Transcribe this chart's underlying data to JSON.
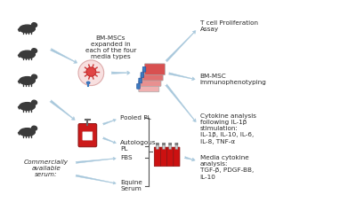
{
  "bg_color": "#ffffff",
  "arrow_color": "#a8c8dc",
  "text_color": "#2a2a2a",
  "horse_color": "#3a3a3a",
  "font_size_label": 5.2,
  "font_size_output": 5.2,
  "title_texts": {
    "t_cell": "T cell Proliferation\nAssay",
    "bm_msc": "BM-MSC\nimmunophenotyping",
    "cytokine": "Cytokine analysis\nfollowing IL-1β\nstimulation:\nIL-1β, IL-10, IL-6,\nIL-8, TNF-α",
    "media": "Media cytokine\nanalysis:\nTGF-β, PDGF-BB,\nIL-10"
  },
  "labels": {
    "bm_msc_expand": "BM-MSCs\nexpanded in\neach of the four\nmedia types",
    "pooled_pl": "Pooled PL",
    "autologous_pl": "Autologous\nPL",
    "commercially": "Commercially\navailable\nserum:",
    "fbs": "FBS",
    "equine_serum": "Equine\nSerum"
  }
}
